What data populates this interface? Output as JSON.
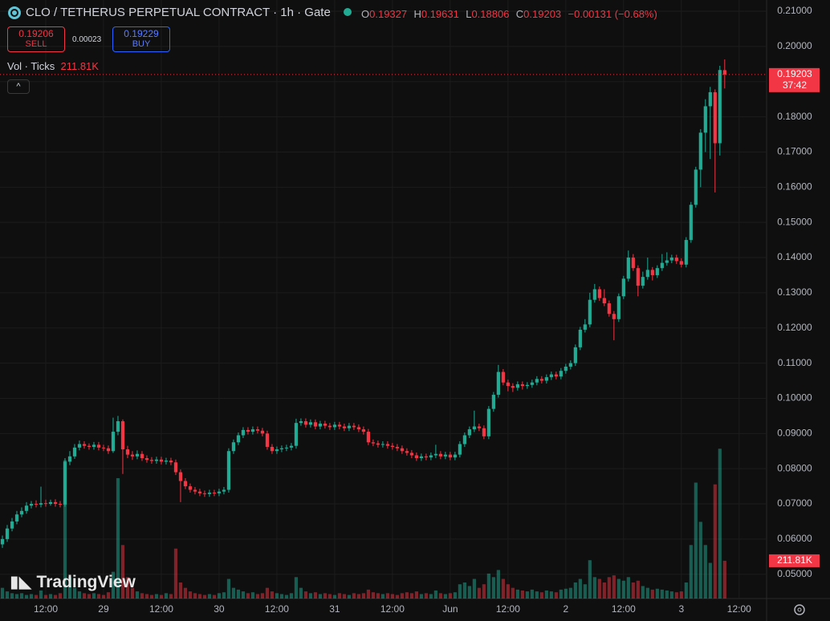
{
  "header": {
    "title": "CLO / TETHERUS PERPETUAL CONTRACT · 1h · Gate",
    "o": "O",
    "h": "H",
    "l": "L",
    "c": "C",
    "change": "−0.00131 (−0.68%)",
    "sell_price": "0.19206",
    "sell": "SELL",
    "spread": "0.00023",
    "buy_price": "0.19229",
    "buy": "BUY",
    "volume_title": "Vol · Ticks",
    "countdown": "37:42",
    "logo": "TradingView"
  },
  "chart_data": {
    "type": "candlestick",
    "up_color": "#22ab94",
    "down_color": "#f23645",
    "grid": true,
    "xticks": [
      {
        "value": 9,
        "label": "12:00"
      },
      {
        "value": 21,
        "label": "29"
      },
      {
        "value": 33,
        "label": "12:00"
      },
      {
        "value": 45,
        "label": "30"
      },
      {
        "value": 57,
        "label": "12:00"
      },
      {
        "value": 69,
        "label": "31"
      },
      {
        "value": 81,
        "label": "12:00"
      },
      {
        "value": 93,
        "label": "Jun"
      },
      {
        "value": 105,
        "label": "12:00"
      },
      {
        "value": 117,
        "label": "2"
      },
      {
        "value": 129,
        "label": "12:00"
      },
      {
        "value": 141,
        "label": "3"
      },
      {
        "value": 153,
        "label": "12:00"
      }
    ],
    "xlim": [
      -0.5,
      158.7
    ],
    "ylim": [
      0.0431,
      0.2132
    ],
    "yticks": [
      {
        "value": 0.21,
        "label": "0.21000"
      },
      {
        "value": 0.2,
        "label": "0.20000"
      },
      {
        "value": 0.19,
        "label": "0.19000"
      },
      {
        "value": 0.18,
        "label": "0.18000"
      },
      {
        "value": 0.17,
        "label": "0.17000"
      },
      {
        "value": 0.16,
        "label": "0.16000"
      },
      {
        "value": 0.15,
        "label": "0.15000"
      },
      {
        "value": 0.14,
        "label": "0.14000"
      },
      {
        "value": 0.13,
        "label": "0.13000"
      },
      {
        "value": 0.12,
        "label": "0.12000"
      },
      {
        "value": 0.11,
        "label": "0.11000"
      },
      {
        "value": 0.1,
        "label": "0.10000"
      },
      {
        "value": 0.09,
        "label": "0.09000"
      },
      {
        "value": 0.08,
        "label": "0.08000"
      },
      {
        "value": 0.07,
        "label": "0.07000"
      },
      {
        "value": 0.06,
        "label": "0.06000"
      },
      {
        "value": 0.05,
        "label": "0.05000"
      }
    ],
    "open": [
      0.0585,
      0.06,
      0.063,
      0.065,
      0.067,
      0.068,
      0.0695,
      0.07,
      0.0698,
      0.0702,
      0.07,
      0.0705,
      0.07,
      0.0698,
      0.082,
      0.0835,
      0.086,
      0.087,
      0.0865,
      0.0862,
      0.0868,
      0.086,
      0.0858,
      0.085,
      0.0905,
      0.0935,
      0.0855,
      0.084,
      0.0835,
      0.0842,
      0.083,
      0.0825,
      0.0822,
      0.0826,
      0.082,
      0.0823,
      0.0818,
      0.079,
      0.0765,
      0.075,
      0.074,
      0.0735,
      0.073,
      0.0728,
      0.0732,
      0.073,
      0.0735,
      0.074,
      0.085,
      0.0875,
      0.0895,
      0.091,
      0.0905,
      0.0912,
      0.0908,
      0.09,
      0.0862,
      0.085,
      0.0855,
      0.0858,
      0.086,
      0.0865,
      0.093,
      0.0935,
      0.0925,
      0.0932,
      0.092,
      0.0928,
      0.0922,
      0.0918,
      0.0925,
      0.092,
      0.0915,
      0.0922,
      0.0918,
      0.0912,
      0.0905,
      0.0875,
      0.0872,
      0.0868,
      0.087,
      0.0865,
      0.0862,
      0.0858,
      0.085,
      0.0845,
      0.0838,
      0.083,
      0.0835,
      0.0832,
      0.0838,
      0.0842,
      0.0835,
      0.084,
      0.0832,
      0.084,
      0.087,
      0.0895,
      0.0912,
      0.092,
      0.0915,
      0.0892,
      0.097,
      0.101,
      0.1075,
      0.1045,
      0.1035,
      0.103,
      0.104,
      0.1035,
      0.1038,
      0.1045,
      0.1055,
      0.105,
      0.106,
      0.1068,
      0.1062,
      0.1078,
      0.109,
      0.11,
      0.1145,
      0.1195,
      0.121,
      0.128,
      0.131,
      0.1285,
      0.127,
      0.124,
      0.1225,
      0.129,
      0.134,
      0.14,
      0.137,
      0.132,
      0.1345,
      0.1365,
      0.135,
      0.137,
      0.1385,
      0.1392,
      0.14,
      0.139,
      0.138,
      0.145,
      0.155,
      0.165,
      0.1755,
      0.183,
      0.187,
      0.1725,
      0.19327
    ],
    "high": [
      0.061,
      0.064,
      0.066,
      0.068,
      0.069,
      0.0705,
      0.0708,
      0.071,
      0.0749,
      0.0712,
      0.0712,
      0.0713,
      0.0708,
      0.083,
      0.085,
      0.087,
      0.088,
      0.0878,
      0.0872,
      0.0876,
      0.0876,
      0.0868,
      0.0866,
      0.0945,
      0.095,
      0.094,
      0.0865,
      0.085,
      0.0852,
      0.085,
      0.0838,
      0.0833,
      0.0834,
      0.0834,
      0.0831,
      0.0831,
      0.0826,
      0.0798,
      0.0773,
      0.0758,
      0.0748,
      0.0743,
      0.0738,
      0.074,
      0.074,
      0.0743,
      0.0748,
      0.0858,
      0.0883,
      0.0903,
      0.0918,
      0.0918,
      0.092,
      0.092,
      0.0916,
      0.0908,
      0.087,
      0.0863,
      0.0866,
      0.0868,
      0.0873,
      0.0942,
      0.0943,
      0.0943,
      0.094,
      0.094,
      0.0936,
      0.0936,
      0.093,
      0.0933,
      0.0933,
      0.0928,
      0.093,
      0.093,
      0.0926,
      0.092,
      0.0913,
      0.0883,
      0.088,
      0.0878,
      0.0878,
      0.0873,
      0.087,
      0.0866,
      0.0858,
      0.0853,
      0.0846,
      0.0843,
      0.0843,
      0.0846,
      0.0868,
      0.085,
      0.0848,
      0.0848,
      0.0848,
      0.0878,
      0.0903,
      0.092,
      0.0965,
      0.0928,
      0.0923,
      0.0978,
      0.1018,
      0.1095,
      0.1083,
      0.1053,
      0.1043,
      0.1048,
      0.1048,
      0.1046,
      0.1053,
      0.1063,
      0.1063,
      0.1068,
      0.1076,
      0.1076,
      0.1086,
      0.1098,
      0.1108,
      0.1153,
      0.1203,
      0.1225,
      0.13,
      0.1325,
      0.1318,
      0.131,
      0.1278,
      0.1248,
      0.1298,
      0.1348,
      0.142,
      0.141,
      0.1378,
      0.136,
      0.14,
      0.1373,
      0.1378,
      0.141,
      0.1415,
      0.1408,
      0.1408,
      0.1398,
      0.1458,
      0.1558,
      0.1658,
      0.1765,
      0.185,
      0.1885,
      0.1878,
      0.1945,
      0.19631
    ],
    "low": [
      0.0575,
      0.0592,
      0.0622,
      0.0642,
      0.0662,
      0.0672,
      0.0687,
      0.069,
      0.069,
      0.0692,
      0.0695,
      0.0692,
      0.069,
      0.0692,
      0.081,
      0.0828,
      0.0852,
      0.0857,
      0.0854,
      0.0854,
      0.0852,
      0.085,
      0.0842,
      0.0845,
      0.0895,
      0.0785,
      0.083,
      0.0825,
      0.0827,
      0.0822,
      0.0817,
      0.0814,
      0.0814,
      0.0812,
      0.0812,
      0.081,
      0.0782,
      0.0705,
      0.0742,
      0.0732,
      0.0727,
      0.0722,
      0.072,
      0.072,
      0.0722,
      0.0722,
      0.0727,
      0.0732,
      0.0842,
      0.0867,
      0.0887,
      0.0897,
      0.0897,
      0.09,
      0.0892,
      0.0854,
      0.0842,
      0.0842,
      0.0847,
      0.085,
      0.0852,
      0.0857,
      0.0922,
      0.0917,
      0.0917,
      0.0912,
      0.0912,
      0.0914,
      0.091,
      0.091,
      0.0912,
      0.0907,
      0.0907,
      0.091,
      0.0904,
      0.0897,
      0.0867,
      0.0864,
      0.086,
      0.086,
      0.0857,
      0.0854,
      0.085,
      0.0842,
      0.0837,
      0.083,
      0.0822,
      0.0822,
      0.0824,
      0.0824,
      0.083,
      0.0827,
      0.0827,
      0.0824,
      0.0824,
      0.0832,
      0.0862,
      0.0887,
      0.0904,
      0.0907,
      0.0884,
      0.0884,
      0.0962,
      0.1002,
      0.1037,
      0.102,
      0.1018,
      0.1022,
      0.1025,
      0.1027,
      0.103,
      0.1037,
      0.1042,
      0.1042,
      0.1052,
      0.1054,
      0.1054,
      0.107,
      0.1082,
      0.1092,
      0.1137,
      0.1187,
      0.1202,
      0.1272,
      0.1277,
      0.1262,
      0.1232,
      0.1165,
      0.1217,
      0.1282,
      0.1332,
      0.1362,
      0.129,
      0.1312,
      0.1337,
      0.1335,
      0.1342,
      0.1362,
      0.1377,
      0.1384,
      0.1382,
      0.1372,
      0.1372,
      0.1442,
      0.1542,
      0.16,
      0.17,
      0.168,
      0.1585,
      0.169,
      0.18806
    ],
    "close": [
      0.06,
      0.063,
      0.065,
      0.067,
      0.068,
      0.0695,
      0.07,
      0.0698,
      0.0702,
      0.07,
      0.0705,
      0.07,
      0.0698,
      0.082,
      0.0835,
      0.086,
      0.087,
      0.0865,
      0.0862,
      0.0868,
      0.086,
      0.0858,
      0.085,
      0.0905,
      0.0935,
      0.0855,
      0.084,
      0.0835,
      0.0842,
      0.083,
      0.0825,
      0.0822,
      0.0826,
      0.082,
      0.0823,
      0.0818,
      0.079,
      0.0765,
      0.075,
      0.074,
      0.0735,
      0.073,
      0.0728,
      0.0732,
      0.073,
      0.0735,
      0.074,
      0.085,
      0.0875,
      0.0895,
      0.091,
      0.0905,
      0.0912,
      0.0908,
      0.09,
      0.0862,
      0.085,
      0.0855,
      0.0858,
      0.086,
      0.0865,
      0.093,
      0.0935,
      0.0925,
      0.0932,
      0.092,
      0.0928,
      0.0922,
      0.0918,
      0.0925,
      0.092,
      0.0915,
      0.0922,
      0.0918,
      0.0912,
      0.0905,
      0.0875,
      0.0872,
      0.0868,
      0.087,
      0.0865,
      0.0862,
      0.0858,
      0.085,
      0.0845,
      0.0838,
      0.083,
      0.0835,
      0.0832,
      0.0838,
      0.0842,
      0.0835,
      0.084,
      0.0832,
      0.084,
      0.087,
      0.0895,
      0.0912,
      0.092,
      0.0915,
      0.0892,
      0.097,
      0.101,
      0.1075,
      0.1045,
      0.1035,
      0.103,
      0.104,
      0.1035,
      0.1038,
      0.1045,
      0.1055,
      0.105,
      0.106,
      0.1068,
      0.1062,
      0.1078,
      0.109,
      0.11,
      0.1145,
      0.1195,
      0.121,
      0.128,
      0.131,
      0.1285,
      0.127,
      0.124,
      0.1225,
      0.129,
      0.134,
      0.14,
      0.137,
      0.132,
      0.1345,
      0.1365,
      0.135,
      0.137,
      0.1385,
      0.1392,
      0.14,
      0.139,
      0.138,
      0.145,
      0.155,
      0.165,
      0.1755,
      0.183,
      0.187,
      0.1725,
      0.1933,
      0.19203
    ],
    "volume": {
      "ylim": [
        0,
        3356000
      ],
      "last_label": "211.81K",
      "values": [
        60000,
        40000,
        30000,
        25000,
        30000,
        20000,
        25000,
        20000,
        45000,
        20000,
        25000,
        20000,
        30000,
        775000,
        120000,
        60000,
        40000,
        30000,
        25000,
        30000,
        25000,
        20000,
        35000,
        150000,
        675000,
        300000,
        120000,
        60000,
        40000,
        30000,
        25000,
        20000,
        25000,
        20000,
        30000,
        25000,
        280000,
        90000,
        60000,
        40000,
        30000,
        25000,
        20000,
        25000,
        20000,
        30000,
        35000,
        110000,
        60000,
        50000,
        40000,
        30000,
        35000,
        25000,
        30000,
        60000,
        40000,
        30000,
        25000,
        20000,
        30000,
        120000,
        60000,
        40000,
        30000,
        35000,
        25000,
        30000,
        25000,
        20000,
        30000,
        25000,
        20000,
        30000,
        25000,
        30000,
        50000,
        35000,
        30000,
        25000,
        30000,
        25000,
        20000,
        30000,
        35000,
        30000,
        40000,
        25000,
        30000,
        25000,
        45000,
        30000,
        25000,
        30000,
        35000,
        80000,
        90000,
        70000,
        110000,
        60000,
        80000,
        140000,
        120000,
        160000,
        110000,
        80000,
        60000,
        50000,
        45000,
        40000,
        50000,
        40000,
        35000,
        45000,
        40000,
        35000,
        50000,
        55000,
        60000,
        90000,
        110000,
        80000,
        215000,
        120000,
        110000,
        90000,
        120000,
        130000,
        110000,
        100000,
        120000,
        90000,
        100000,
        70000,
        60000,
        50000,
        55000,
        50000,
        45000,
        40000,
        35000,
        40000,
        90000,
        300000,
        650000,
        430000,
        300000,
        200000,
        640000,
        840000,
        211810
      ]
    }
  }
}
